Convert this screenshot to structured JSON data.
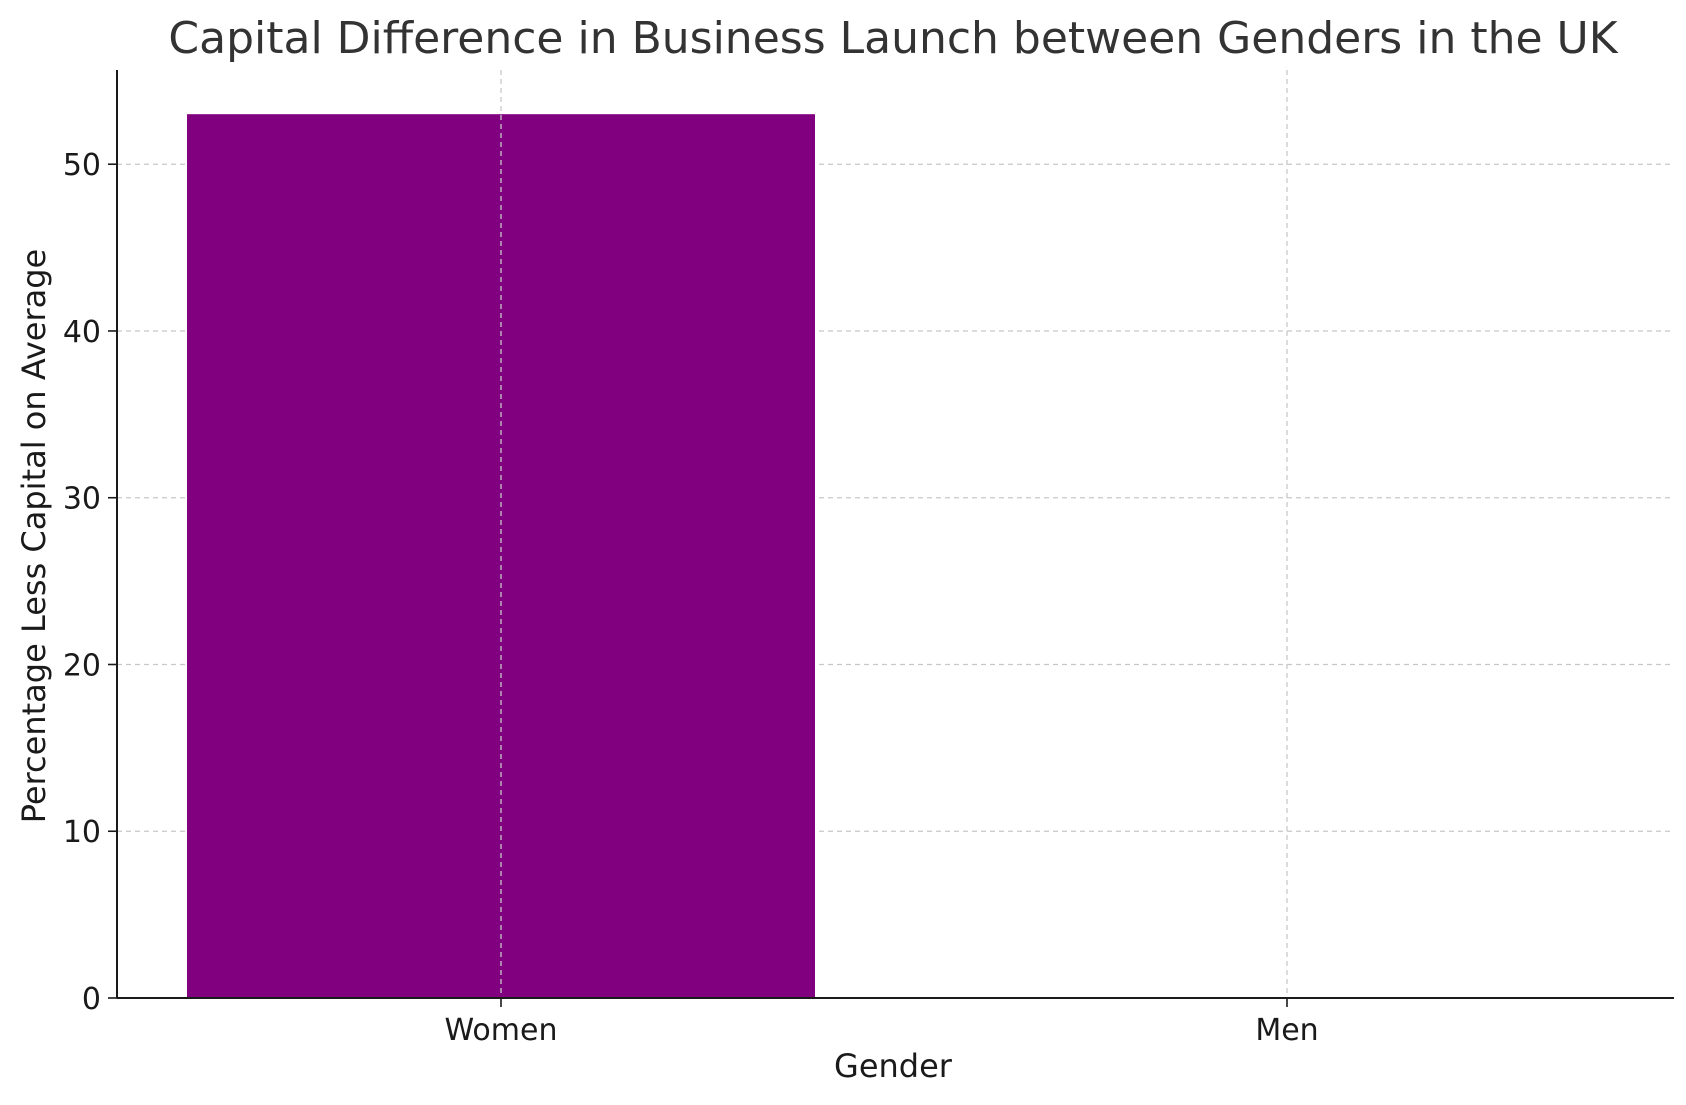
{
  "chart_data": {
    "type": "bar",
    "title": "Capital Difference in Business Launch between Genders in the UK",
    "xlabel": "Gender",
    "ylabel": "Percentage Less Capital on Average",
    "categories": [
      "Women",
      "Men"
    ],
    "values": [
      53,
      0
    ],
    "ylim": [
      0,
      55.65
    ],
    "yticks": [
      0,
      10,
      20,
      30,
      40,
      50
    ],
    "grid": true,
    "bar_color": "#800080",
    "grid_color": "#c8c8c8",
    "text_color": "#333333"
  }
}
